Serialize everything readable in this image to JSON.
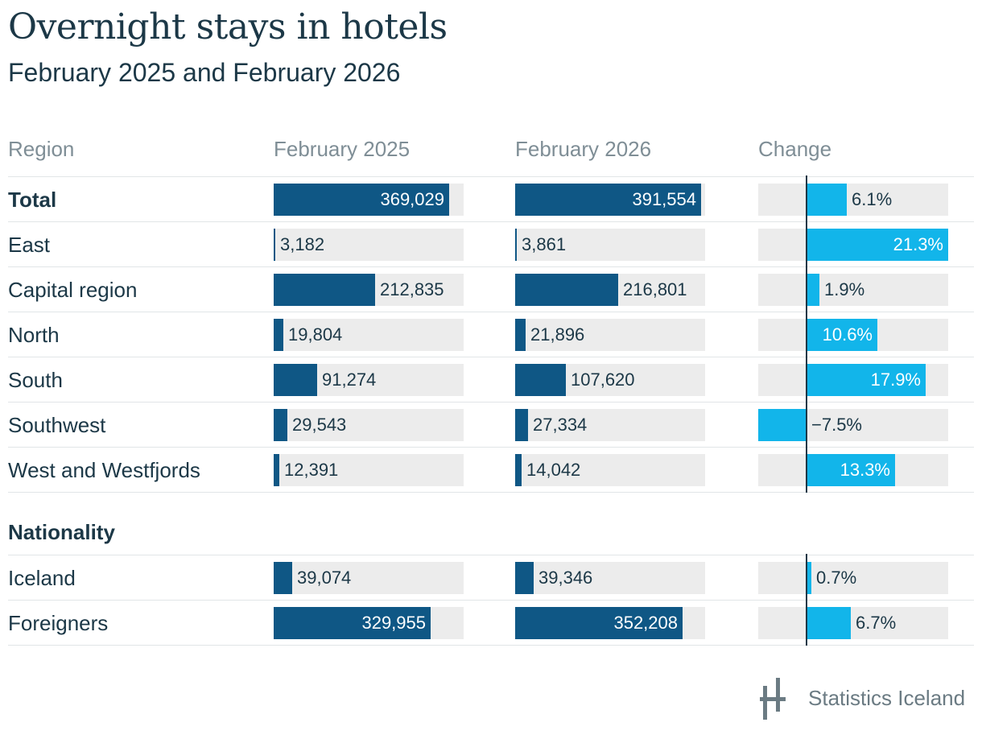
{
  "title": "Overnight stays in hotels",
  "subtitle": "February 2025 and February 2026",
  "headers": {
    "region": "Region",
    "col2025": "February 2025",
    "col2026": "February 2026",
    "change": "Change"
  },
  "sections": {
    "nationality": "Nationality"
  },
  "logo": {
    "text": "Statistics Iceland",
    "icon": "statistics-iceland-logo-icon"
  },
  "colors": {
    "bar": "#0f5785",
    "change_bar": "#12b5ea",
    "background_bar": "#ececec",
    "text": "#1c3847",
    "header": "#7f8e96"
  },
  "chart_data": {
    "type": "table",
    "title": "Overnight stays in hotels",
    "subtitle": "February 2025 and February 2026",
    "max_value": 400000,
    "change_range": [
      -10,
      21.3
    ],
    "rows": [
      {
        "label": "Total",
        "bold": true,
        "v2025": 369029,
        "v2026": 391554,
        "l2025": "369,029",
        "l2026": "391,554",
        "change": 6.1,
        "change_label": "6.1%"
      },
      {
        "label": "East",
        "bold": false,
        "v2025": 3182,
        "v2026": 3861,
        "l2025": "3,182",
        "l2026": "3,861",
        "change": 21.3,
        "change_label": "21.3%"
      },
      {
        "label": "Capital region",
        "bold": false,
        "v2025": 212835,
        "v2026": 216801,
        "l2025": "212,835",
        "l2026": "216,801",
        "change": 1.9,
        "change_label": "1.9%"
      },
      {
        "label": "North",
        "bold": false,
        "v2025": 19804,
        "v2026": 21896,
        "l2025": "19,804",
        "l2026": "21,896",
        "change": 10.6,
        "change_label": "10.6%"
      },
      {
        "label": "South",
        "bold": false,
        "v2025": 91274,
        "v2026": 107620,
        "l2025": "91,274",
        "l2026": "107,620",
        "change": 17.9,
        "change_label": "17.9%"
      },
      {
        "label": "Southwest",
        "bold": false,
        "v2025": 29543,
        "v2026": 27334,
        "l2025": "29,543",
        "l2026": "27,334",
        "change": -7.5,
        "change_label": "−7.5%"
      },
      {
        "label": "West and Westfjords",
        "bold": false,
        "v2025": 12391,
        "v2026": 14042,
        "l2025": "12,391",
        "l2026": "14,042",
        "change": 13.3,
        "change_label": "13.3%"
      }
    ],
    "nationality_rows": [
      {
        "label": "Iceland",
        "bold": false,
        "v2025": 39074,
        "v2026": 39346,
        "l2025": "39,074",
        "l2026": "39,346",
        "change": 0.7,
        "change_label": "0.7%"
      },
      {
        "label": "Foreigners",
        "bold": false,
        "v2025": 329955,
        "v2026": 352208,
        "l2025": "329,955",
        "l2026": "352,208",
        "change": 6.7,
        "change_label": "6.7%"
      }
    ]
  }
}
